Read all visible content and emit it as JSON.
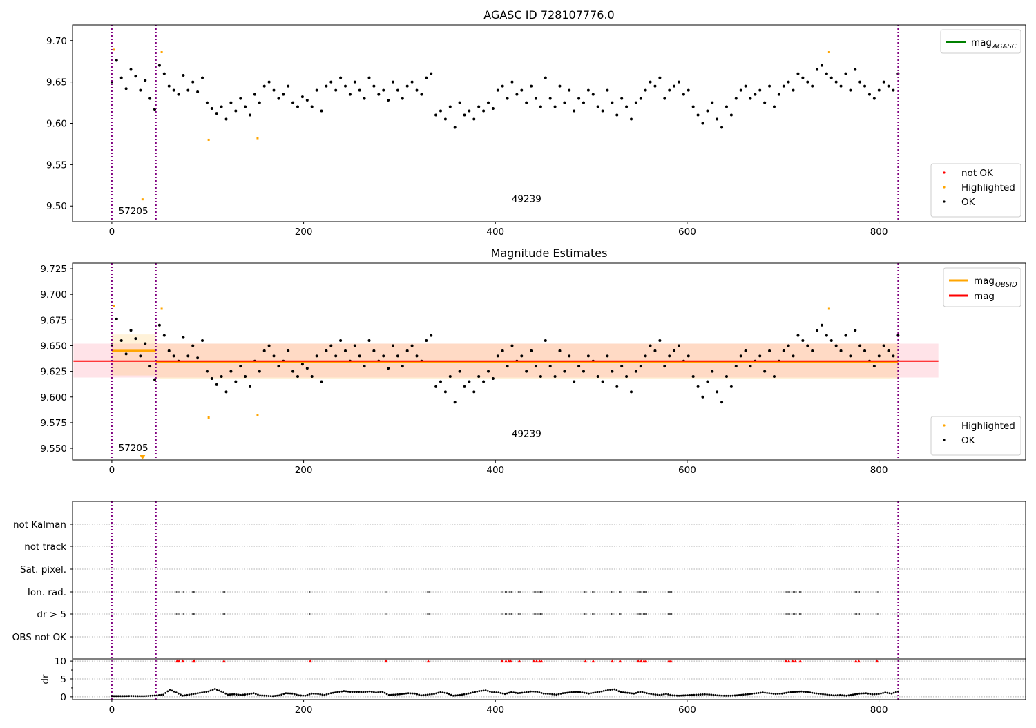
{
  "chart_data": [
    {
      "type": "scatter",
      "title": "AGASC ID 728107776.0",
      "xlim": [
        -41,
        953
      ],
      "ylim": [
        9.481,
        9.719
      ],
      "xticks": [
        "0",
        "200",
        "400",
        "600",
        "800"
      ],
      "xtick_values": [
        0,
        200,
        400,
        600,
        800
      ],
      "yticks": [
        "9.50",
        "9.55",
        "9.60",
        "9.65",
        "9.70"
      ],
      "ytick_values": [
        9.5,
        9.55,
        9.6,
        9.65,
        9.7
      ],
      "vlines": [
        0,
        46,
        820
      ],
      "annotations": [
        {
          "text": "57205",
          "x": 7,
          "y": 9.49
        },
        {
          "text": "49239",
          "x": 417,
          "y": 9.505
        }
      ],
      "legend_lines": [
        {
          "label": "mag",
          "sub": "AGASC",
          "color": "#008000"
        }
      ],
      "legend_points": [
        {
          "label": "not OK",
          "color": "#ff0000"
        },
        {
          "label": "Highlighted",
          "color": "#ffa500"
        },
        {
          "label": "OK",
          "color": "#000000"
        }
      ]
    },
    {
      "type": "scatter",
      "title": "Magnitude Estimates",
      "xlim": [
        -41,
        953
      ],
      "ylim": [
        9.5386,
        9.7304
      ],
      "xticks": [
        "0",
        "200",
        "400",
        "600",
        "800"
      ],
      "xtick_values": [
        0,
        200,
        400,
        600,
        800
      ],
      "yticks": [
        "9.550",
        "9.575",
        "9.600",
        "9.625",
        "9.650",
        "9.675",
        "9.700",
        "9.725"
      ],
      "ytick_values": [
        9.55,
        9.575,
        9.6,
        9.625,
        9.65,
        9.675,
        9.7,
        9.725
      ],
      "vlines": [
        0,
        46,
        820
      ],
      "annotations": [
        {
          "text": "57205",
          "x": 7,
          "y": 9.5475
        },
        {
          "text": "49239",
          "x": 417,
          "y": 9.561
        }
      ],
      "mag": {
        "value": 9.635,
        "band": [
          9.619,
          9.652
        ],
        "x_range": [
          -40,
          862
        ]
      },
      "mag_obsid": [
        {
          "x_range": [
            0,
            46
          ],
          "value": 9.645,
          "band": [
            9.621,
            9.661
          ]
        },
        {
          "x_range": [
            46,
            820
          ],
          "value": 9.634,
          "band": [
            9.618,
            9.652
          ]
        }
      ],
      "legend_lines": [
        {
          "label": "mag",
          "sub": "OBSID",
          "color": "#ffa500"
        },
        {
          "label": "mag",
          "sub": "",
          "color": "#ff0000"
        }
      ],
      "legend_points": [
        {
          "label": "Highlighted",
          "color": "#ffa500"
        },
        {
          "label": "OK",
          "color": "#000000"
        }
      ]
    },
    {
      "type": "scatter",
      "xlim": [
        -41,
        953
      ],
      "flag_labels": [
        "not Kalman",
        "not track",
        "Sat. pixel.",
        "Ion. rad.",
        "dr > 5",
        "OBS not OK"
      ],
      "flag_points": {
        "Ion. rad.": "flag_x",
        "dr > 5": "flag_x"
      },
      "flag_x": [
        68,
        70,
        74,
        85,
        86,
        117,
        207,
        286,
        330,
        407,
        411,
        414,
        416,
        425,
        440,
        443,
        446,
        448,
        494,
        502,
        522,
        530,
        549,
        552,
        555,
        557,
        581,
        583,
        703,
        706,
        710,
        713,
        718,
        776,
        779,
        798
      ],
      "dr_ylabel": "dr",
      "dr_ylim": [
        -0.8,
        10.6
      ],
      "dr_yticks": [
        "0",
        "5",
        "10"
      ],
      "dr_ytick_values": [
        0,
        5,
        10
      ],
      "dr_clip_value": 10,
      "xticks": [
        "0",
        "200",
        "400",
        "600",
        "800"
      ],
      "xtick_values": [
        0,
        200,
        400,
        600,
        800
      ],
      "dr_x_range": [
        0,
        820
      ],
      "dr": [
        0.2,
        0.2,
        0.2,
        0.25,
        0.2,
        0.2,
        0.3,
        0.4,
        0.6,
        2.0,
        1.2,
        0.3,
        0.6,
        0.9,
        1.2,
        1.5,
        2.2,
        1.5,
        0.6,
        0.7,
        0.5,
        0.7,
        1.0,
        0.4,
        0.3,
        0.2,
        0.4,
        1.0,
        0.9,
        0.4,
        0.3,
        0.9,
        0.8,
        0.5,
        1.0,
        1.3,
        1.6,
        1.4,
        1.4,
        1.3,
        1.5,
        1.2,
        1.4,
        0.5,
        0.6,
        0.8,
        1.0,
        0.9,
        0.4,
        0.6,
        0.8,
        1.3,
        1.0,
        0.3,
        0.5,
        0.8,
        1.2,
        1.6,
        1.8,
        1.3,
        1.2,
        0.8,
        1.3,
        1.0,
        1.2,
        1.5,
        1.4,
        0.9,
        0.8,
        0.6,
        1.0,
        1.2,
        1.4,
        1.2,
        0.9,
        1.2,
        1.5,
        1.9,
        2.1,
        1.3,
        1.1,
        0.9,
        1.4,
        1.0,
        0.7,
        0.5,
        0.8,
        0.4,
        0.3,
        0.4,
        0.5,
        0.6,
        0.7,
        0.6,
        0.4,
        0.3,
        0.3,
        0.4,
        0.6,
        0.8,
        1.0,
        1.2,
        1.0,
        0.8,
        0.9,
        1.2,
        1.4,
        1.5,
        1.3,
        1.0,
        0.8,
        0.6,
        0.4,
        0.5,
        0.3,
        0.6,
        0.9,
        1.0,
        0.7,
        0.8,
        1.2,
        0.9,
        1.5
      ]
    }
  ],
  "series": {
    "x_range": [
      0,
      820
    ],
    "ok_mag": [
      9.65,
      9.676,
      9.655,
      9.642,
      9.665,
      9.657,
      9.64,
      9.652,
      9.63,
      9.617,
      9.67,
      9.66,
      9.645,
      9.64,
      9.635,
      9.658,
      9.64,
      9.65,
      9.638,
      9.655,
      9.625,
      9.618,
      9.612,
      9.62,
      9.605,
      9.625,
      9.615,
      9.63,
      9.62,
      9.61,
      9.635,
      9.625,
      9.645,
      9.65,
      9.64,
      9.63,
      9.635,
      9.645,
      9.625,
      9.62,
      9.632,
      9.628,
      9.62,
      9.64,
      9.615,
      9.645,
      9.65,
      9.64,
      9.655,
      9.645,
      9.635,
      9.65,
      9.64,
      9.63,
      9.655,
      9.645,
      9.635,
      9.64,
      9.628,
      9.65,
      9.64,
      9.63,
      9.645,
      9.65,
      9.64,
      9.635,
      9.655,
      9.66,
      9.61,
      9.615,
      9.605,
      9.62,
      9.595,
      9.625,
      9.61,
      9.615,
      9.605,
      9.62,
      9.615,
      9.625,
      9.618,
      9.64,
      9.645,
      9.63,
      9.65,
      9.635,
      9.64,
      9.625,
      9.645,
      9.63,
      9.62,
      9.655,
      9.63,
      9.62,
      9.645,
      9.625,
      9.64,
      9.615,
      9.63,
      9.625,
      9.64,
      9.635,
      9.62,
      9.615,
      9.64,
      9.625,
      9.61,
      9.63,
      9.62,
      9.605,
      9.625,
      9.63,
      9.64,
      9.65,
      9.645,
      9.655,
      9.63,
      9.64,
      9.645,
      9.65,
      9.635,
      9.64,
      9.62,
      9.61,
      9.6,
      9.615,
      9.625,
      9.605,
      9.595,
      9.62,
      9.61,
      9.63,
      9.64,
      9.645,
      9.63,
      9.635,
      9.64,
      9.625,
      9.645,
      9.62,
      9.635,
      9.645,
      9.65,
      9.64,
      9.66,
      9.655,
      9.65,
      9.645,
      9.665,
      9.67,
      9.66,
      9.655,
      9.65,
      9.645,
      9.66,
      9.64,
      9.665,
      9.65,
      9.645,
      9.635,
      9.63,
      9.64,
      9.65,
      9.645,
      9.64,
      9.66
    ],
    "highlighted": [
      [
        2,
        9.689
      ],
      [
        32,
        9.508
      ],
      [
        52,
        9.686
      ],
      [
        101,
        9.58
      ],
      [
        152,
        9.582
      ],
      [
        748,
        9.686
      ]
    ]
  },
  "colors": {
    "ok": "#000000",
    "highlighted": "#ffa500",
    "not_ok": "#ff0000",
    "vline": "#800080",
    "mag": "#ff0000",
    "mag_band": "#ffc0cb",
    "obsid": "#ffa500"
  }
}
